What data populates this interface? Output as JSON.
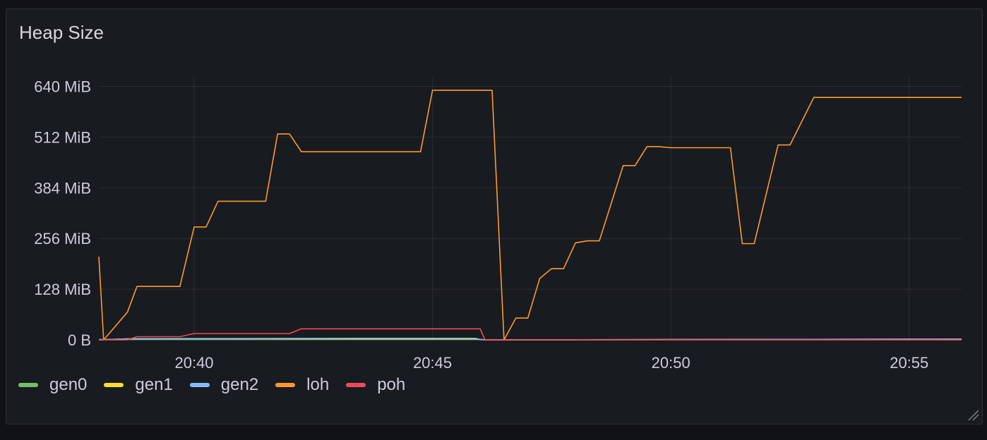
{
  "panel": {
    "title": "Heap Size"
  },
  "chart_data": {
    "type": "line",
    "title": "Heap Size",
    "xlabel": "",
    "ylabel": "",
    "x_ticks": [
      "20:40",
      "20:45",
      "20:50",
      "20:55"
    ],
    "x_tick_values": [
      40,
      45,
      50,
      55
    ],
    "xlim": [
      38.0,
      56.1
    ],
    "y_ticks": [
      "0 B",
      "128 MiB",
      "256 MiB",
      "384 MiB",
      "512 MiB",
      "640 MiB"
    ],
    "y_tick_values": [
      0,
      128,
      256,
      384,
      512,
      640
    ],
    "ylim": [
      0,
      680
    ],
    "grid": true,
    "legend_position": "bottom-left",
    "series": [
      {
        "name": "gen0",
        "color": "#73bf69",
        "x": [
          38.0,
          46.0,
          46.1,
          56.1
        ],
        "y": [
          1,
          1,
          0,
          1
        ]
      },
      {
        "name": "gen1",
        "color": "#fade2a",
        "x": [
          38.0,
          38.7,
          45.9,
          46.0,
          46.1,
          56.1
        ],
        "y": [
          0,
          3,
          3,
          1,
          0,
          2
        ]
      },
      {
        "name": "gen2",
        "color": "#8ab8ff",
        "x": [
          38.0,
          38.7,
          44.0,
          45.9,
          46.0,
          46.1,
          56.1
        ],
        "y": [
          0,
          3,
          4,
          4,
          1,
          0,
          2
        ]
      },
      {
        "name": "loh",
        "color": "#ff9830",
        "x": [
          38.0,
          38.1,
          38.6,
          38.8,
          39.7,
          40.0,
          40.25,
          40.5,
          41.5,
          41.75,
          42.0,
          42.25,
          44.75,
          45.0,
          46.25,
          46.5,
          46.75,
          47.0,
          47.25,
          47.5,
          47.75,
          48.0,
          48.25,
          48.5,
          49.0,
          49.25,
          49.5,
          49.75,
          50.0,
          51.25,
          51.5,
          51.75,
          52.25,
          52.5,
          53.0,
          53.25,
          56.1
        ],
        "y": [
          210,
          0,
          70,
          135,
          135,
          285,
          285,
          350,
          350,
          520,
          520,
          475,
          475,
          630,
          630,
          0,
          55,
          55,
          155,
          180,
          180,
          245,
          250,
          250,
          440,
          440,
          488,
          488,
          485,
          485,
          243,
          243,
          492,
          492,
          612,
          612,
          612
        ]
      },
      {
        "name": "poh",
        "color": "#f2495c",
        "x": [
          38.0,
          38.6,
          38.8,
          39.7,
          40.0,
          42.0,
          42.25,
          45.75,
          46.0,
          46.1,
          56.1
        ],
        "y": [
          0,
          0,
          8,
          8,
          16,
          16,
          28,
          28,
          28,
          0,
          0
        ]
      }
    ]
  }
}
